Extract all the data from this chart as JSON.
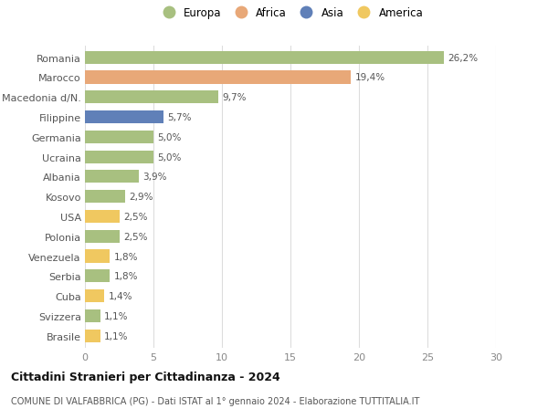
{
  "countries": [
    "Romania",
    "Marocco",
    "Macedonia d/N.",
    "Filippine",
    "Germania",
    "Ucraina",
    "Albania",
    "Kosovo",
    "USA",
    "Polonia",
    "Venezuela",
    "Serbia",
    "Cuba",
    "Svizzera",
    "Brasile"
  ],
  "values": [
    26.2,
    19.4,
    9.7,
    5.7,
    5.0,
    5.0,
    3.9,
    2.9,
    2.5,
    2.5,
    1.8,
    1.8,
    1.4,
    1.1,
    1.1
  ],
  "labels": [
    "26,2%",
    "19,4%",
    "9,7%",
    "5,7%",
    "5,0%",
    "5,0%",
    "3,9%",
    "2,9%",
    "2,5%",
    "2,5%",
    "1,8%",
    "1,8%",
    "1,4%",
    "1,1%",
    "1,1%"
  ],
  "continents": [
    "Europa",
    "Africa",
    "Europa",
    "Asia",
    "Europa",
    "Europa",
    "Europa",
    "Europa",
    "America",
    "Europa",
    "America",
    "Europa",
    "America",
    "Europa",
    "America"
  ],
  "continent_colors": {
    "Europa": "#a8c080",
    "Africa": "#e8a878",
    "Asia": "#6080b8",
    "America": "#f0c860"
  },
  "legend_order": [
    "Europa",
    "Africa",
    "Asia",
    "America"
  ],
  "title": "Cittadini Stranieri per Cittadinanza - 2024",
  "subtitle": "COMUNE DI VALFABBRICA (PG) - Dati ISTAT al 1° gennaio 2024 - Elaborazione TUTTITALIA.IT",
  "xlim": [
    0,
    30
  ],
  "xticks": [
    0,
    5,
    10,
    15,
    20,
    25,
    30
  ],
  "background_color": "#ffffff",
  "grid_color": "#dddddd"
}
